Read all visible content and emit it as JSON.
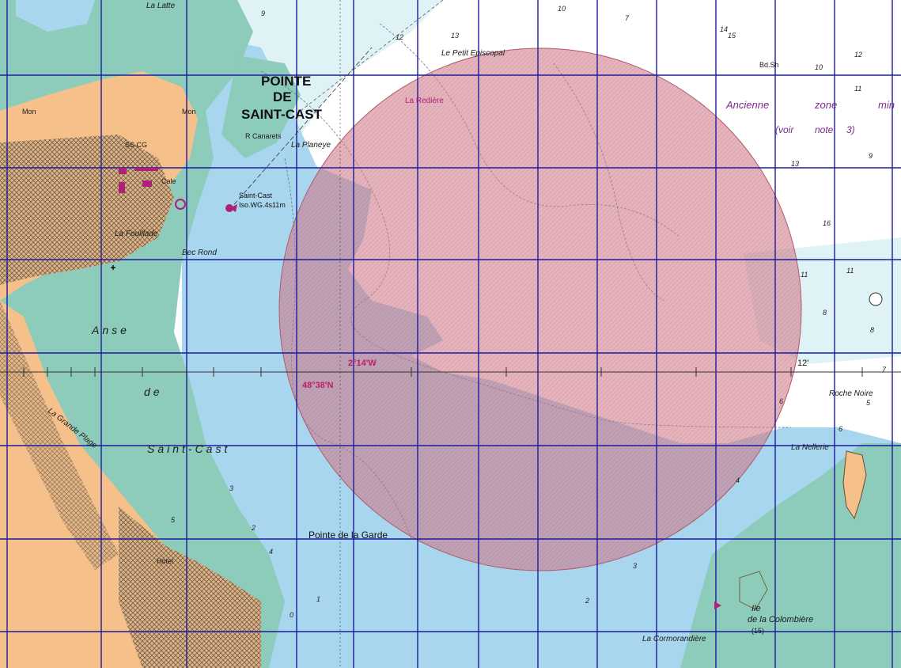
{
  "chart": {
    "place_labels": {
      "pointe_line1": "POINTE",
      "pointe_line2": "DE",
      "pointe_line3": "SAINT-CAST",
      "la_latte": "La Latte",
      "le_petit_episcopal": "Le Petit Episcopal",
      "la_rediere": "La Redière",
      "la_planeye": "La Planeye",
      "r_canarets": "R Canarets",
      "la_fouillade": "La Fouillade",
      "bec_rond": "Bec Rond",
      "anse": "Anse",
      "de": "de",
      "saint_cast": "Saint-Cast",
      "la_grande_plage": "La Grande Plage",
      "pointe_de_la_garde": "Pointe de la Garde",
      "roche_noire": "Roche Noire",
      "la_nellerie": "La Nellerie",
      "ile_line1": "Ile",
      "ile_line2": "de la Colombière",
      "ile_height": "(15)",
      "la_cormorandiere": "La Cormorandière",
      "mon_left": "Mon",
      "mon_right": "Mon",
      "hotel": "Hotel",
      "ss_cg": "SS.CG"
    },
    "zone_labels": {
      "word1": "Ancienne",
      "word2": "zone",
      "word3": "min",
      "ref1": "(voir",
      "ref2": "note",
      "ref3": "3)"
    },
    "light_label": {
      "line1": "Saint-Cast",
      "line2": "Iso.WG.4s11m"
    },
    "coords": {
      "longitude": "2°14'W",
      "latitude": "48°38'N",
      "minute_mark": "12'"
    },
    "mag_labels": {
      "bb_sh": "Bd.Sh",
      "cale": "Cale"
    },
    "soundings": [
      "10",
      "7",
      "14",
      "12",
      "9",
      "13",
      "16",
      "11",
      "8",
      "6",
      "5",
      "4",
      "3",
      "2",
      "1",
      "0",
      "2",
      "5",
      "12",
      "13",
      "9",
      "10",
      "11",
      "8",
      "7",
      "6",
      "3",
      "4",
      "15",
      "11"
    ],
    "colors": {
      "land": "#f6c08a",
      "deep_sea": "#ffffff",
      "mid_sea": "#dff2f6",
      "shallow_sea": "#a9d6ef",
      "foreshore": "#8dcbbb",
      "grid": "#1c1c9e",
      "danger_zone": "#cc6f7f"
    }
  }
}
